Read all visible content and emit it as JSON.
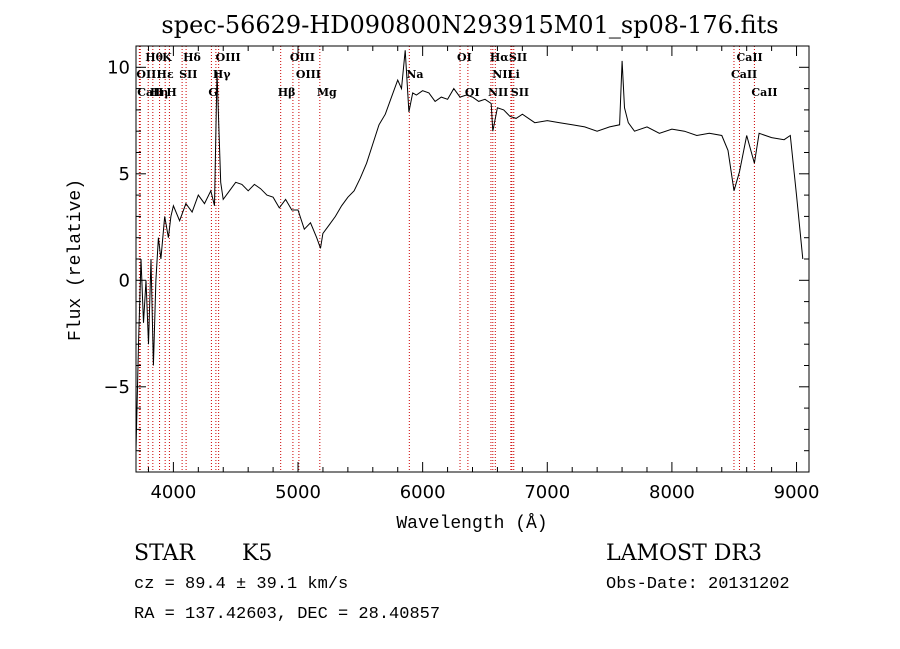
{
  "chart_data": {
    "type": "line",
    "title": "spec-56629-HD090800N293915M01_sp08-176.fits",
    "xlabel": "Wavelength (Å)",
    "ylabel": "Flux (relative)",
    "xlim": [
      3700,
      9100
    ],
    "ylim": [
      -9,
      11
    ],
    "x_ticks": [
      4000,
      5000,
      6000,
      7000,
      8000,
      9000
    ],
    "x_tick_labels": [
      "4000",
      "5000",
      "6000",
      "7000",
      "8000",
      "9000"
    ],
    "y_ticks": [
      -5,
      0,
      5,
      10
    ],
    "y_tick_labels": [
      "−5",
      "0",
      "5",
      "10"
    ],
    "grid": false,
    "line_color": "#000000",
    "marker_line_color": "#cc0000",
    "series": [
      {
        "x": [
          3700,
          3720,
          3740,
          3760,
          3780,
          3800,
          3820,
          3840,
          3860,
          3880,
          3900,
          3930,
          3960,
          3980,
          4000,
          4050,
          4100,
          4150,
          4200,
          4250,
          4300,
          4330,
          4350,
          4380,
          4400,
          4450,
          4500,
          4550,
          4600,
          4650,
          4700,
          4750,
          4800,
          4850,
          4900,
          4950,
          5000,
          5050,
          5100,
          5150,
          5180,
          5200,
          5250,
          5300,
          5350,
          5400,
          5450,
          5500,
          5550,
          5600,
          5650,
          5700,
          5750,
          5800,
          5830,
          5860,
          5890,
          5920,
          5950,
          6000,
          6050,
          6100,
          6150,
          6200,
          6250,
          6300,
          6350,
          6400,
          6450,
          6500,
          6550,
          6563,
          6600,
          6650,
          6700,
          6750,
          6800,
          6900,
          7000,
          7100,
          7200,
          7300,
          7400,
          7500,
          7580,
          7600,
          7620,
          7650,
          7700,
          7800,
          7900,
          8000,
          8100,
          8200,
          8300,
          8400,
          8450,
          8498,
          8542,
          8600,
          8662,
          8700,
          8800,
          8900,
          8950,
          9000,
          9050
        ],
        "y": [
          -8,
          -3,
          1,
          -2,
          0,
          -3,
          1,
          -4,
          0,
          2,
          1,
          3,
          2,
          3,
          3.5,
          2.8,
          3.6,
          3.2,
          4.0,
          3.6,
          4.2,
          3.5,
          9.8,
          4.6,
          3.8,
          4.2,
          4.6,
          4.5,
          4.2,
          4.5,
          4.3,
          4.0,
          3.9,
          3.4,
          3.8,
          3.3,
          3.3,
          2.4,
          2.7,
          2.0,
          1.5,
          2.2,
          2.6,
          3.0,
          3.5,
          3.9,
          4.2,
          4.8,
          5.5,
          6.4,
          7.3,
          7.8,
          8.6,
          9.4,
          9.0,
          10.8,
          7.9,
          8.8,
          8.7,
          8.9,
          8.8,
          8.4,
          8.6,
          8.5,
          9.0,
          8.6,
          8.7,
          8.6,
          8.4,
          8.5,
          8.3,
          7.0,
          8.1,
          8.0,
          7.7,
          7.6,
          7.8,
          7.4,
          7.5,
          7.4,
          7.3,
          7.2,
          7.0,
          7.2,
          7.3,
          10.3,
          8.1,
          7.4,
          7.0,
          7.2,
          6.9,
          7.1,
          7.0,
          6.8,
          6.9,
          6.8,
          6.1,
          4.2,
          5.1,
          6.8,
          5.5,
          6.9,
          6.7,
          6.6,
          6.8,
          4.0,
          1.0
        ]
      }
    ],
    "spectral_lines": [
      {
        "label": "Hθ",
        "wavelength": 3798,
        "row": 1
      },
      {
        "label": "OII",
        "wavelength": 3727,
        "row": 2
      },
      {
        "label": "CaII",
        "wavelength": 3734,
        "row": 3
      },
      {
        "label": "Hη",
        "wavelength": 3835,
        "row": 3
      },
      {
        "label": "K",
        "wavelength": 3934,
        "row": 1
      },
      {
        "label": "Hε",
        "wavelength": 3889,
        "row": 2
      },
      {
        "label": "SII",
        "wavelength": 4070,
        "row": 2
      },
      {
        "label": "H",
        "wavelength": 3968,
        "row": 3
      },
      {
        "label": "Hδ",
        "wavelength": 4102,
        "row": 1
      },
      {
        "label": "OIII",
        "wavelength": 4363,
        "row": 1
      },
      {
        "label": "Hγ",
        "wavelength": 4341,
        "row": 2
      },
      {
        "label": "G",
        "wavelength": 4305,
        "row": 3
      },
      {
        "label": "OIII",
        "wavelength": 4959,
        "row": 1
      },
      {
        "label": "OIII",
        "wavelength": 5007,
        "row": 2
      },
      {
        "label": "Hβ",
        "wavelength": 4861,
        "row": 3
      },
      {
        "label": "Mg",
        "wavelength": 5175,
        "row": 3
      },
      {
        "label": "Na",
        "wavelength": 5893,
        "row": 2
      },
      {
        "label": "OI",
        "wavelength": 6300,
        "row": 1
      },
      {
        "label": "OI",
        "wavelength": 6363,
        "row": 3
      },
      {
        "label": "Hα",
        "wavelength": 6563,
        "row": 1
      },
      {
        "label": "SII",
        "wavelength": 6716,
        "row": 1
      },
      {
        "label": "NII",
        "wavelength": 6583,
        "row": 2
      },
      {
        "label": "Li",
        "wavelength": 6708,
        "row": 2
      },
      {
        "label": "NII",
        "wavelength": 6548,
        "row": 3
      },
      {
        "label": "SII",
        "wavelength": 6731,
        "row": 3
      },
      {
        "label": "CaII",
        "wavelength": 8542,
        "row": 1
      },
      {
        "label": "CaII",
        "wavelength": 8498,
        "row": 2
      },
      {
        "label": "CaII",
        "wavelength": 8662,
        "row": 3
      }
    ]
  },
  "info": {
    "object_class": "STAR",
    "subclass": "K5",
    "survey": "LAMOST DR3",
    "redshift": "cz = 89.4 ± 39.1 km/s",
    "obs_date": "Obs-Date: 20131202",
    "coords": "RA = 137.42603, DEC =  28.40857"
  }
}
